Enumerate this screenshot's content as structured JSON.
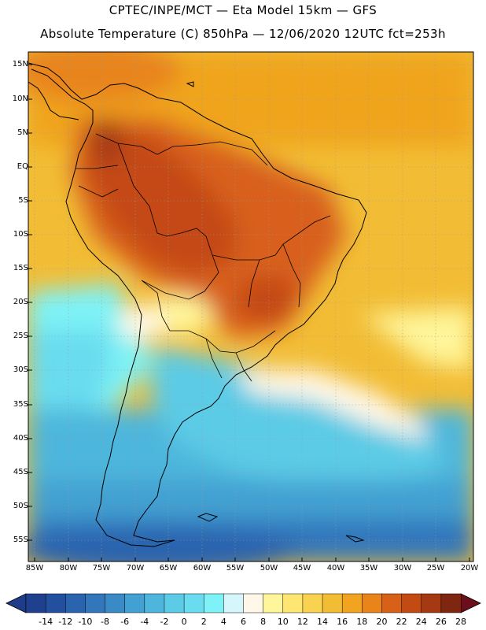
{
  "header": {
    "line1": "CPTEC/INPE/MCT —  Eta Model 15km — GFS",
    "line2": "Absolute Temperature (C) 850hPa — 12/06/2020 12UTC fct=253h"
  },
  "lat_labels": [
    "15N",
    "10N",
    "5N",
    "EQ",
    "5S",
    "10S",
    "15S",
    "20S",
    "25S",
    "30S",
    "35S",
    "40S",
    "45S",
    "50S",
    "55S"
  ],
  "lon_labels": [
    "85W",
    "80W",
    "75W",
    "70W",
    "65W",
    "60W",
    "55W",
    "50W",
    "45W",
    "40W",
    "35W",
    "30W",
    "25W",
    "20W"
  ],
  "colorbar": {
    "labels": [
      "-14",
      "-12",
      "-10",
      "-8",
      "-6",
      "-4",
      "-2",
      "0",
      "2",
      "4",
      "6",
      "8",
      "10",
      "12",
      "14",
      "16",
      "18",
      "20",
      "22",
      "24",
      "26",
      "28"
    ],
    "colors": [
      "#1f3f8f",
      "#22509e",
      "#2a63ae",
      "#3276bb",
      "#3a8ac6",
      "#43a0d2",
      "#4eb6dc",
      "#5ccbe6",
      "#69dcef",
      "#7ef2f6",
      "#d5f6fb",
      "#fff8e8",
      "#fff59a",
      "#fde671",
      "#f9d24f",
      "#f2bd35",
      "#f0a41f",
      "#e8841a",
      "#d8611a",
      "#c44a14",
      "#a53a12",
      "#7f2610"
    ],
    "under_color": "#1e3c8a",
    "over_color": "#6b0f1a"
  },
  "chart_data": {
    "type": "map",
    "title": "Absolute Temperature (C) 850hPa",
    "source": "CPTEC/INPE/MCT Eta Model 15km GFS",
    "valid_time": "12/06/2020 12UTC",
    "forecast_hour": "fct=253h",
    "units": "C",
    "lon_range": [
      -86,
      -19
    ],
    "lat_range": [
      -58,
      16
    ],
    "contour_levels": [
      -14,
      -12,
      -10,
      -8,
      -6,
      -4,
      -2,
      0,
      2,
      4,
      6,
      8,
      10,
      12,
      14,
      16,
      18,
      20,
      22,
      24,
      26,
      28
    ]
  }
}
